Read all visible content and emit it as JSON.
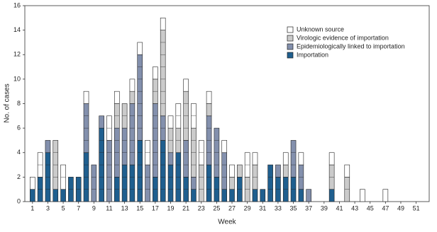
{
  "chart_data": {
    "type": "bar",
    "stacked": true,
    "x_label": "Week",
    "y_label": "No. of cases",
    "x": [
      1,
      2,
      3,
      4,
      5,
      6,
      7,
      8,
      9,
      10,
      11,
      12,
      13,
      14,
      15,
      16,
      17,
      18,
      19,
      20,
      21,
      22,
      23,
      24,
      25,
      26,
      27,
      28,
      29,
      30,
      31,
      32,
      33,
      34,
      35,
      36,
      37,
      38,
      39,
      40,
      41,
      42,
      43,
      44,
      45,
      46,
      47,
      48,
      49,
      50,
      51,
      52
    ],
    "xlim": [
      0,
      52.7
    ],
    "xticks": [
      1,
      3,
      5,
      7,
      9,
      11,
      13,
      15,
      17,
      19,
      21,
      23,
      25,
      27,
      29,
      31,
      33,
      35,
      37,
      39,
      41,
      43,
      45,
      47,
      49,
      51
    ],
    "ylim": [
      0,
      16
    ],
    "yticks": [
      0,
      2,
      4,
      6,
      8,
      10,
      12,
      14,
      16
    ],
    "legend_position": "upper right",
    "series": [
      {
        "name": "Importation",
        "color": "#1f5f8f",
        "values": [
          1,
          2,
          4,
          1,
          1,
          2,
          2,
          4,
          0,
          6,
          0,
          2,
          3,
          3,
          5,
          0,
          2,
          5,
          3,
          4,
          2,
          1,
          0,
          3,
          2,
          1,
          1,
          2,
          0,
          1,
          1,
          3,
          2,
          2,
          2,
          1,
          0,
          0,
          0,
          1,
          0,
          0,
          0,
          0,
          0,
          0,
          0,
          0,
          0,
          0,
          0,
          0
        ]
      },
      {
        "name": "Epidemiologically linked to importation",
        "color": "#8390ad",
        "values": [
          0,
          0,
          1,
          0,
          0,
          0,
          0,
          4,
          3,
          1,
          5,
          4,
          3,
          5,
          7,
          3,
          6,
          2,
          1,
          0,
          3,
          1,
          0,
          4,
          4,
          3,
          0,
          0,
          0,
          0,
          0,
          0,
          1,
          0,
          3,
          2,
          1,
          0,
          0,
          0,
          0,
          0,
          0,
          0,
          0,
          0,
          0,
          0,
          0,
          0,
          0,
          0
        ]
      },
      {
        "name": "Virologic evidence of importation",
        "color": "#cbcbcb",
        "values": [
          0,
          0,
          0,
          4,
          0,
          0,
          0,
          0,
          0,
          0,
          0,
          2,
          2,
          1,
          0,
          0,
          2,
          7,
          2,
          2,
          4,
          4,
          3,
          1,
          0,
          0,
          1,
          1,
          2,
          2,
          0,
          0,
          0,
          1,
          0,
          0,
          0,
          0,
          0,
          2,
          0,
          2,
          0,
          0,
          0,
          0,
          0,
          0,
          0,
          0,
          0,
          0
        ]
      },
      {
        "name": "Unknown source",
        "color": "#ffffff",
        "values": [
          1,
          2,
          0,
          0,
          2,
          0,
          0,
          1,
          0,
          0,
          2,
          1,
          0,
          1,
          1,
          2,
          1,
          1,
          1,
          2,
          1,
          2,
          2,
          1,
          0,
          1,
          1,
          0,
          2,
          1,
          0,
          0,
          0,
          1,
          0,
          1,
          0,
          0,
          0,
          1,
          0,
          1,
          0,
          1,
          0,
          0,
          1,
          0,
          0,
          0,
          0,
          0
        ]
      }
    ]
  }
}
